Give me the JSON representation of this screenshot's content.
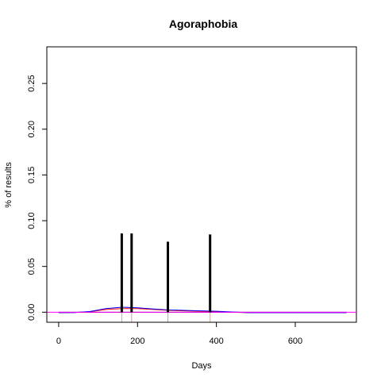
{
  "chart_data": {
    "type": "line",
    "title": "Agoraphobia",
    "xlabel": "Days",
    "ylabel": "% of results",
    "xlim": [
      -30,
      755
    ],
    "ylim": [
      -0.011,
      0.29
    ],
    "x_ticks": [
      0,
      200,
      400,
      600
    ],
    "y_ticks": [
      0.0,
      0.05,
      0.1,
      0.15,
      0.2,
      0.25
    ],
    "y_tick_labels": [
      "0.00",
      "0.05",
      "0.10",
      "0.15",
      "0.20",
      "0.25"
    ],
    "grid": false,
    "spikes": {
      "color": "#000000",
      "x": [
        160,
        185,
        277,
        384
      ],
      "y": [
        0.086,
        0.086,
        0.077,
        0.085
      ]
    },
    "series": [
      {
        "color": "#000000",
        "x": [
          0,
          730
        ],
        "y": [
          0.0,
          0.0
        ]
      },
      {
        "color": "#ff0000",
        "x": [
          0,
          40,
          80,
          120,
          160,
          200,
          240,
          280,
          320,
          360,
          400,
          440,
          480,
          560,
          640,
          730
        ],
        "y": [
          -0.0005,
          -0.0004,
          0.0005,
          0.003,
          0.004,
          0.004,
          0.003,
          0.002,
          0.0015,
          0.001,
          0.0005,
          0.0,
          -0.0005,
          -0.0005,
          -0.0005,
          -0.0005
        ]
      },
      {
        "color": "#0000ff",
        "x": [
          0,
          40,
          80,
          120,
          160,
          200,
          240,
          280,
          320,
          360,
          400,
          440,
          480,
          560,
          640,
          730
        ],
        "y": [
          -0.0005,
          -0.0004,
          0.0008,
          0.004,
          0.0055,
          0.0048,
          0.0035,
          0.0025,
          0.002,
          0.0015,
          0.001,
          0.0003,
          -0.0005,
          -0.0005,
          -0.0005,
          -0.0005
        ]
      },
      {
        "color": "#ff00ff",
        "x": [
          -30,
          755
        ],
        "y": [
          0.0,
          0.0
        ]
      }
    ],
    "rug": {
      "color": "#d8a0a0",
      "x": [
        160,
        185,
        277,
        384
      ]
    }
  }
}
